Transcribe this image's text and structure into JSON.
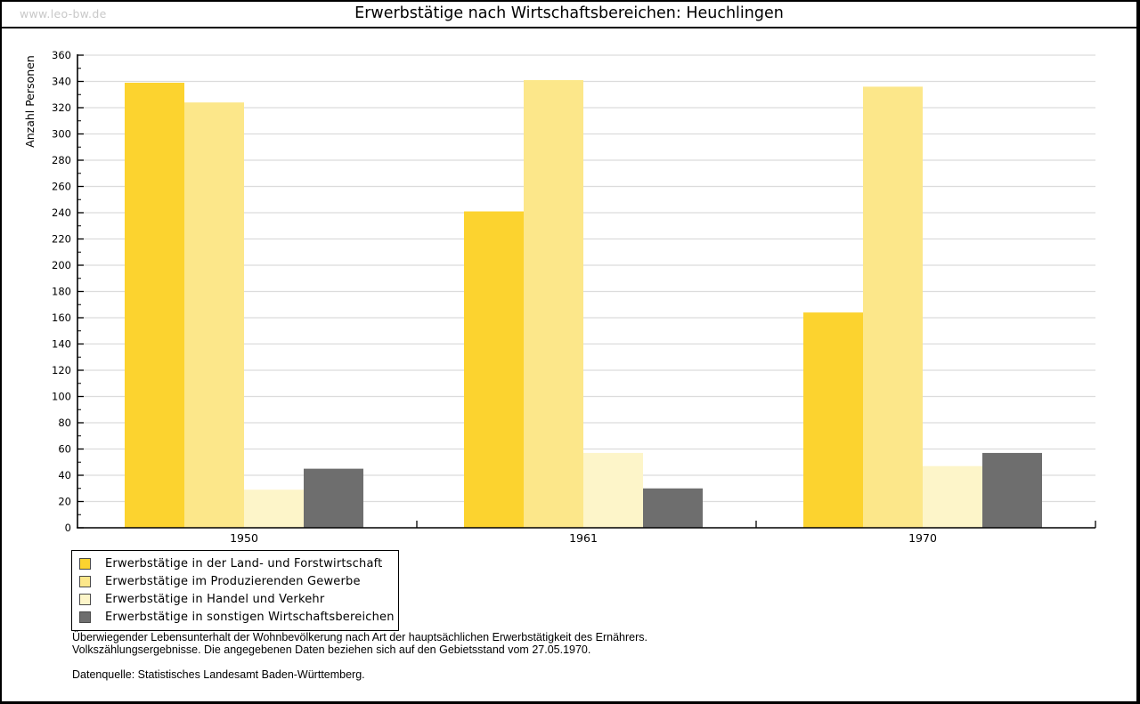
{
  "header": {
    "watermark": "www.leo-bw.de",
    "title": "Erwerbstätige nach Wirtschaftsbereichen: Heuchlingen"
  },
  "chart_data": {
    "type": "bar",
    "title": "Erwerbstätige nach Wirtschaftsbereichen: Heuchlingen",
    "xlabel": "",
    "ylabel": "Anzahl Personen",
    "categories": [
      "1950",
      "1961",
      "1970"
    ],
    "series": [
      {
        "name": "Erwerbstätige in der Land- und Forstwirtschaft",
        "color": "#FCD32F",
        "values": [
          339,
          241,
          164
        ]
      },
      {
        "name": "Erwerbstätige im Produzierenden Gewerbe",
        "color": "#FCE78A",
        "values": [
          324,
          341,
          336
        ]
      },
      {
        "name": "Erwerbstätige in Handel und Verkehr",
        "color": "#FDF5C9",
        "values": [
          29,
          57,
          47
        ]
      },
      {
        "name": "Erwerbstätige in sonstigen Wirtschaftsbereichen",
        "color": "#6E6E6E",
        "values": [
          45,
          30,
          57
        ]
      }
    ],
    "ylim": [
      0,
      360
    ],
    "ytick_step": 20,
    "ytick_minor_step": 10,
    "grid": true,
    "grid_color": "#DCDCDC",
    "axis_color": "#000000",
    "legend_position": "bottom-left"
  },
  "footer": {
    "note_line1": "Überwiegender Lebensunterhalt der Wohnbevölkerung nach Art der hauptsächlichen Erwerbstätigkeit des Ernährers.",
    "note_line2": "Volkszählungsergebnisse. Die angegebenen Daten beziehen sich auf den Gebietsstand vom 27.05.1970.",
    "source": "Datenquelle: Statistisches Landesamt Baden-Württemberg."
  }
}
